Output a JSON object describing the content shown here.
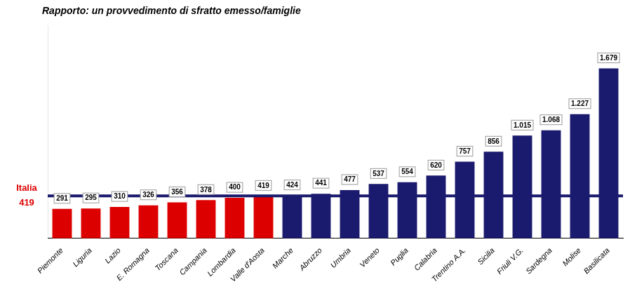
{
  "chart_data": {
    "type": "bar",
    "title": "Rapporto: un provvedimento di sfratto emesso/famiglie",
    "categories": [
      "Piemonte",
      "Liguria",
      "Lazio",
      "E. Romagna",
      "Toscana",
      "Campania",
      "Lombardia",
      "Valle d'Aosta",
      "Marche",
      "Abruzzo",
      "Umbria",
      "Veneto",
      "Puglia",
      "Calabria",
      "Trentino A.A.",
      "Sicilia",
      "Friuli V.G.",
      "Sardegna",
      "Molise",
      "Basilicata"
    ],
    "values": [
      291,
      295,
      310,
      326,
      356,
      378,
      400,
      419,
      424,
      441,
      477,
      537,
      554,
      620,
      757,
      856,
      1015,
      1068,
      1227,
      1679
    ],
    "value_labels": [
      "291",
      "295",
      "310",
      "326",
      "356",
      "378",
      "400",
      "419",
      "424",
      "441",
      "477",
      "537",
      "554",
      "620",
      "757",
      "856",
      "1.015",
      "1.068",
      "1.227",
      "1.679"
    ],
    "colors": [
      "#dd0000",
      "#dd0000",
      "#dd0000",
      "#dd0000",
      "#dd0000",
      "#dd0000",
      "#dd0000",
      "#dd0000",
      "#1a1a6e",
      "#1a1a6e",
      "#1a1a6e",
      "#1a1a6e",
      "#1a1a6e",
      "#1a1a6e",
      "#1a1a6e",
      "#1a1a6e",
      "#1a1a6e",
      "#1a1a6e",
      "#1a1a6e",
      "#1a1a6e"
    ],
    "reference_line": {
      "value": 419,
      "label": "Italia",
      "value_label": "419",
      "color": "#1a1a6e",
      "label_color": "#dd0000"
    },
    "ylim": [
      0,
      2100
    ],
    "data_labels": true,
    "tick_labels": "x",
    "grid": false
  }
}
